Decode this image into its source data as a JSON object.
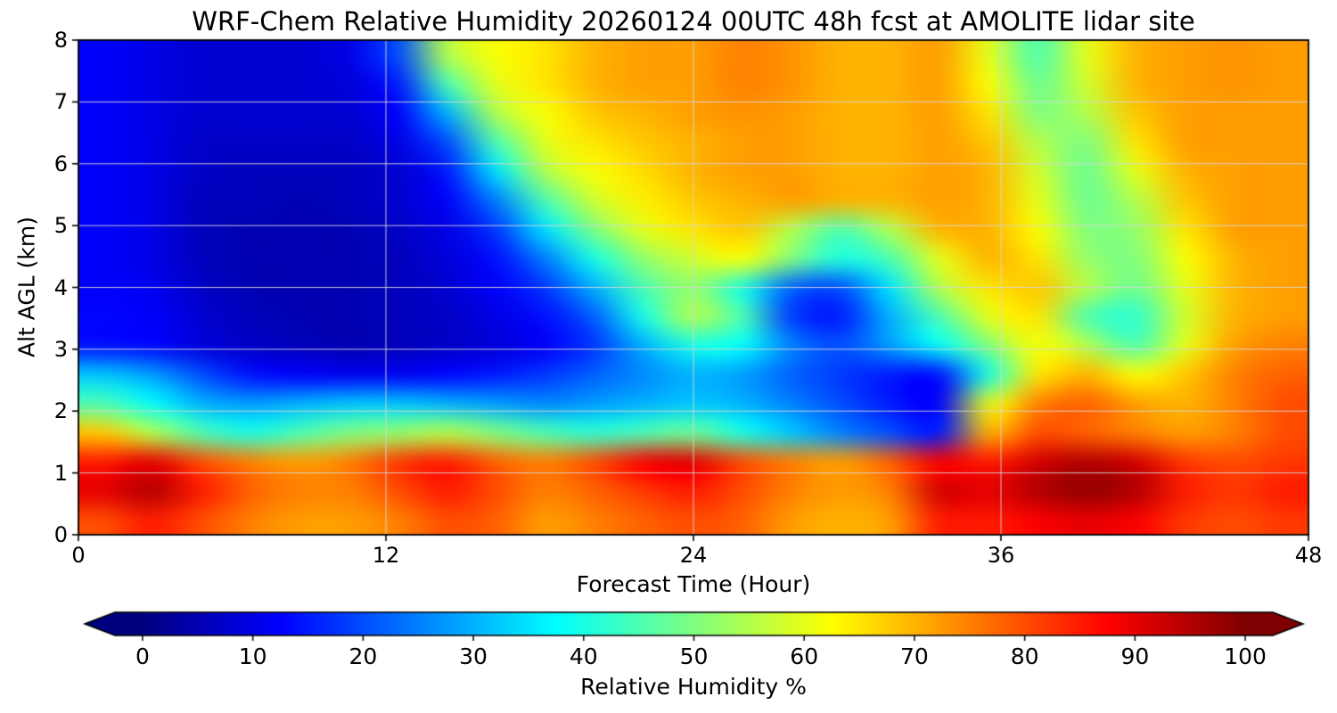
{
  "figure": {
    "title": "WRF-Chem Relative Humidity 20260124 00UTC 48h fcst at AMOLITE lidar site"
  },
  "chart_data": {
    "type": "heatmap",
    "title": "WRF-Chem Relative Humidity 20260124 00UTC 48h fcst at AMOLITE lidar site",
    "xlabel": "Forecast Time (Hour)",
    "ylabel": "Alt AGL (km)",
    "xlim": [
      0,
      48
    ],
    "ylim": [
      0,
      8
    ],
    "xticks": [
      0,
      12,
      24,
      36,
      48
    ],
    "yticks": [
      0,
      1,
      2,
      3,
      4,
      5,
      6,
      7,
      8
    ],
    "grid": true,
    "legend_position": "none",
    "colorbar": {
      "label": "Relative Humidity %",
      "min": 0,
      "max": 100,
      "ticks": [
        0,
        10,
        20,
        30,
        40,
        50,
        60,
        70,
        80,
        90,
        100
      ],
      "extend": "both",
      "colormap": "jet",
      "colormap_stops": [
        {
          "t": 0.0,
          "color": "#00007f"
        },
        {
          "t": 0.125,
          "color": "#0000ff"
        },
        {
          "t": 0.375,
          "color": "#00ffff"
        },
        {
          "t": 0.625,
          "color": "#ffff00"
        },
        {
          "t": 0.875,
          "color": "#ff0000"
        },
        {
          "t": 1.0,
          "color": "#7f0000"
        }
      ]
    },
    "x_hours": [
      0,
      2,
      4,
      6,
      8,
      10,
      12,
      14,
      16,
      18,
      20,
      22,
      24,
      26,
      28,
      30,
      32,
      34,
      36,
      38,
      40,
      42,
      44,
      46,
      48
    ],
    "altitudes_km": [
      8,
      7.5,
      7,
      6.5,
      6,
      5.5,
      5,
      4.5,
      4,
      3.5,
      3,
      2.5,
      2,
      1.5,
      1,
      0.5,
      0
    ],
    "values_rh_percent": [
      [
        12,
        10,
        8,
        8,
        8,
        10,
        20,
        55,
        62,
        65,
        70,
        72,
        72,
        75,
        73,
        70,
        70,
        72,
        60,
        45,
        60,
        70,
        72,
        73,
        72
      ],
      [
        12,
        10,
        8,
        8,
        8,
        9,
        15,
        45,
        60,
        65,
        70,
        72,
        72,
        75,
        73,
        70,
        70,
        72,
        62,
        48,
        58,
        70,
        72,
        73,
        72
      ],
      [
        12,
        10,
        8,
        8,
        8,
        8,
        12,
        30,
        55,
        62,
        68,
        70,
        72,
        73,
        72,
        70,
        70,
        72,
        65,
        50,
        55,
        68,
        72,
        72,
        72
      ],
      [
        12,
        10,
        7,
        7,
        7,
        7,
        10,
        20,
        45,
        60,
        65,
        68,
        70,
        72,
        72,
        70,
        70,
        72,
        68,
        55,
        50,
        65,
        72,
        72,
        72
      ],
      [
        12,
        10,
        7,
        6,
        6,
        6,
        8,
        15,
        35,
        55,
        62,
        66,
        70,
        72,
        72,
        70,
        70,
        72,
        70,
        58,
        48,
        60,
        70,
        72,
        72
      ],
      [
        12,
        10,
        6,
        6,
        5,
        6,
        8,
        12,
        25,
        45,
        58,
        64,
        68,
        70,
        72,
        70,
        70,
        72,
        70,
        60,
        48,
        55,
        68,
        72,
        72
      ],
      [
        12,
        10,
        6,
        5,
        5,
        5,
        7,
        10,
        18,
        35,
        50,
        60,
        65,
        68,
        55,
        45,
        55,
        70,
        70,
        62,
        50,
        52,
        65,
        72,
        72
      ],
      [
        12,
        10,
        6,
        5,
        5,
        5,
        6,
        9,
        14,
        25,
        40,
        52,
        58,
        62,
        50,
        40,
        45,
        60,
        70,
        65,
        52,
        50,
        62,
        70,
        72
      ],
      [
        12,
        11,
        7,
        5,
        5,
        5,
        6,
        8,
        12,
        18,
        30,
        45,
        52,
        40,
        22,
        20,
        35,
        55,
        65,
        68,
        55,
        48,
        60,
        70,
        72
      ],
      [
        13,
        12,
        8,
        6,
        5,
        5,
        6,
        7,
        10,
        14,
        22,
        40,
        55,
        45,
        18,
        15,
        30,
        45,
        60,
        65,
        45,
        42,
        58,
        70,
        72
      ],
      [
        14,
        13,
        9,
        7,
        6,
        5,
        6,
        7,
        9,
        12,
        18,
        30,
        40,
        38,
        25,
        20,
        28,
        38,
        50,
        62,
        55,
        45,
        60,
        72,
        75
      ],
      [
        32,
        28,
        20,
        14,
        12,
        11,
        11,
        13,
        15,
        18,
        22,
        26,
        30,
        28,
        22,
        18,
        15,
        14,
        40,
        65,
        70,
        62,
        68,
        75,
        78
      ],
      [
        45,
        38,
        30,
        28,
        30,
        32,
        32,
        30,
        28,
        26,
        28,
        30,
        32,
        30,
        25,
        20,
        15,
        12,
        60,
        75,
        78,
        72,
        70,
        75,
        80
      ],
      [
        68,
        55,
        45,
        40,
        45,
        50,
        52,
        55,
        50,
        45,
        42,
        45,
        48,
        40,
        32,
        25,
        20,
        15,
        70,
        80,
        78,
        75,
        72,
        75,
        80
      ],
      [
        85,
        90,
        80,
        75,
        72,
        75,
        82,
        85,
        78,
        75,
        80,
        88,
        90,
        80,
        75,
        72,
        78,
        88,
        85,
        92,
        95,
        92,
        82,
        80,
        82
      ],
      [
        90,
        95,
        85,
        78,
        75,
        75,
        80,
        85,
        80,
        75,
        78,
        82,
        85,
        80,
        75,
        72,
        75,
        92,
        90,
        95,
        98,
        95,
        85,
        82,
        85
      ],
      [
        80,
        85,
        80,
        75,
        72,
        72,
        75,
        80,
        78,
        72,
        75,
        78,
        80,
        78,
        72,
        70,
        72,
        85,
        85,
        88,
        90,
        88,
        82,
        80,
        82
      ]
    ]
  }
}
